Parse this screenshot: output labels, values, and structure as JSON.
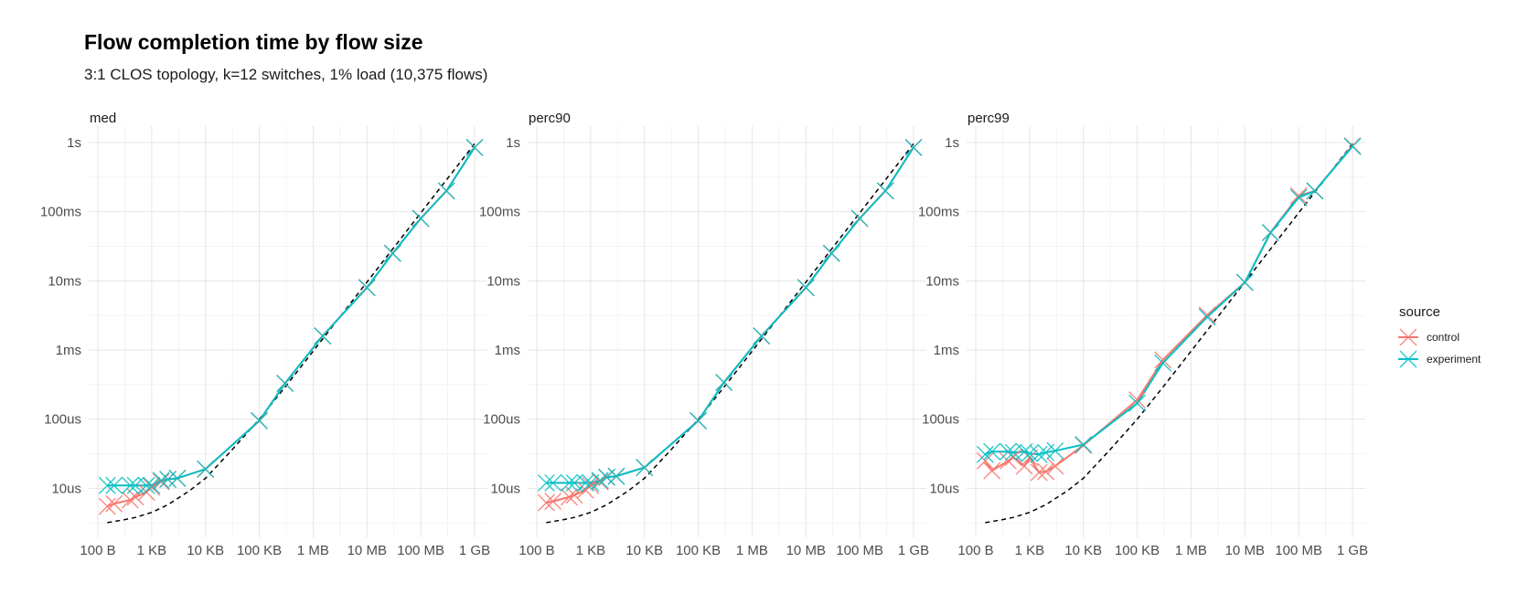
{
  "title": "Flow completion time by flow size",
  "subtitle": "3:1 CLOS topology, k=12 switches, 1% load (10,375 flows)",
  "colors": {
    "control": "#F8766D",
    "experiment": "#00BFC4",
    "overlap": "#7FA6A5",
    "ideal": "#000000",
    "grid": "#e5e5e5"
  },
  "chart_data": {
    "type": "line",
    "facets": [
      "med",
      "perc90",
      "perc99"
    ],
    "x_scale": "log10",
    "y_scale": "log10",
    "x_ticks": [
      {
        "value": 100,
        "label": "100 B"
      },
      {
        "value": 1000,
        "label": "1 KB"
      },
      {
        "value": 10000,
        "label": "10 KB"
      },
      {
        "value": 100000,
        "label": "100 KB"
      },
      {
        "value": 1000000,
        "label": "1 MB"
      },
      {
        "value": 10000000,
        "label": "10 MB"
      },
      {
        "value": 100000000,
        "label": "100 MB"
      },
      {
        "value": 1000000000,
        "label": "1 GB"
      }
    ],
    "y_ticks": [
      {
        "value": 1e-05,
        "label": "10us"
      },
      {
        "value": 0.0001,
        "label": "100us"
      },
      {
        "value": 0.001,
        "label": "1ms"
      },
      {
        "value": 0.01,
        "label": "10ms"
      },
      {
        "value": 0.1,
        "label": "100ms"
      },
      {
        "value": 1,
        "label": "1s"
      }
    ],
    "xlim": [
      100,
      1000000000
    ],
    "ylim": [
      2.5e-06,
      1.2
    ],
    "grid": true,
    "legend": {
      "title": "source",
      "position": "right",
      "entries": [
        "control",
        "experiment"
      ]
    },
    "ideal_curve": {
      "style": "dashed",
      "x": [
        150,
        300,
        500,
        1000,
        2000,
        5000,
        10000,
        30000,
        100000,
        300000,
        1000000,
        10000000,
        100000000,
        1000000000
      ],
      "y": [
        3.2e-06,
        3.5e-06,
        3.8e-06,
        4.5e-06,
        5.8e-06,
        9.2e-06,
        1.4e-05,
        3.5e-05,
        0.0001,
        0.00029,
        0.00096,
        0.0096,
        0.096,
        0.96
      ]
    },
    "panels": [
      {
        "facet": "med",
        "series": [
          {
            "name": "control",
            "x": [
              150,
              200,
              400,
              500,
              800,
              1000,
              1500,
              2000,
              3000,
              10000,
              100000,
              300000,
              1500000,
              10000000,
              30000000,
              100000000,
              300000000,
              1000000000
            ],
            "y": [
              5.5e-06,
              6e-06,
              6.8e-06,
              7.5e-06,
              8.8e-06,
              1.05e-05,
              1.25e-05,
              1.35e-05,
              1.4e-05,
              1.9e-05,
              9.5e-05,
              0.00033,
              0.0016,
              0.008,
              0.025,
              0.08,
              0.2,
              0.85
            ]
          },
          {
            "name": "experiment",
            "x": [
              150,
              200,
              400,
              500,
              800,
              1000,
              1500,
              2000,
              3000,
              10000,
              100000,
              300000,
              1500000,
              10000000,
              30000000,
              100000000,
              300000000,
              1000000000
            ],
            "y": [
              1.1e-05,
              1.1e-05,
              1.1e-05,
              1.1e-05,
              1.1e-05,
              1.1e-05,
              1.3e-05,
              1.35e-05,
              1.4e-05,
              1.9e-05,
              9.5e-05,
              0.00033,
              0.0016,
              0.008,
              0.025,
              0.08,
              0.2,
              0.85
            ]
          }
        ]
      },
      {
        "facet": "perc90",
        "series": [
          {
            "name": "control",
            "x": [
              150,
              200,
              400,
              500,
              800,
              1000,
              1500,
              2000,
              3000,
              10000,
              100000,
              300000,
              1500000,
              10000000,
              30000000,
              100000000,
              300000000,
              1000000000
            ],
            "y": [
              6.2e-06,
              6.5e-06,
              7.5e-06,
              8e-06,
              9.5e-06,
              1.1e-05,
              1.25e-05,
              1.45e-05,
              1.5e-05,
              2e-05,
              9.5e-05,
              0.00034,
              0.0016,
              0.008,
              0.025,
              0.08,
              0.2,
              0.85
            ]
          },
          {
            "name": "experiment",
            "x": [
              150,
              200,
              400,
              500,
              800,
              1000,
              1500,
              2000,
              3000,
              10000,
              100000,
              300000,
              1500000,
              10000000,
              30000000,
              100000000,
              300000000,
              1000000000
            ],
            "y": [
              1.2e-05,
              1.2e-05,
              1.2e-05,
              1.2e-05,
              1.2e-05,
              1.2e-05,
              1.3e-05,
              1.45e-05,
              1.5e-05,
              2e-05,
              9.5e-05,
              0.00034,
              0.0016,
              0.008,
              0.025,
              0.08,
              0.2,
              0.85
            ]
          }
        ]
      },
      {
        "facet": "perc99",
        "series": [
          {
            "name": "control",
            "x": [
              150,
              200,
              400,
              500,
              800,
              1000,
              1500,
              2000,
              3000,
              10000,
              100000,
              300000,
              2000000,
              10000000,
              30000000,
              100000000,
              200000000,
              1000000000
            ],
            "y": [
              2.5e-05,
              1.8e-05,
              2.5e-05,
              2.8e-05,
              2.1e-05,
              2.8e-05,
              1.7e-05,
              1.75e-05,
              2.1e-05,
              4.2e-05,
              0.00019,
              0.00072,
              0.0032,
              0.0095,
              0.05,
              0.17,
              0.2,
              0.9
            ]
          },
          {
            "name": "experiment",
            "x": [
              150,
              200,
              400,
              500,
              800,
              1000,
              1500,
              2000,
              3000,
              10000,
              100000,
              300000,
              2000000,
              10000000,
              30000000,
              100000000,
              200000000,
              1000000000
            ],
            "y": [
              3.1e-05,
              3.4e-05,
              3.4e-05,
              3.3e-05,
              3.4e-05,
              3.2e-05,
              3.1e-05,
              3.3e-05,
              3.5e-05,
              4.3e-05,
              0.00017,
              0.00065,
              0.003,
              0.0095,
              0.05,
              0.16,
              0.2,
              0.88
            ]
          }
        ]
      }
    ]
  }
}
